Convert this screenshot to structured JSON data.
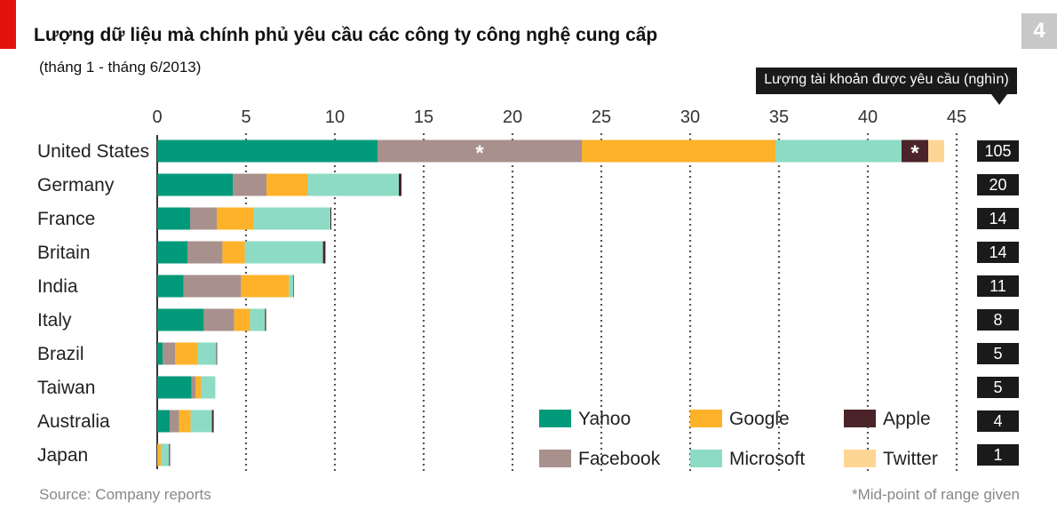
{
  "title": "Lượng dữ liệu mà chính phủ yêu cầu các công ty công nghệ cung cấp",
  "subtitle": "(tháng 1 - tháng 6/2013)",
  "page_number": "4",
  "source": "Source: Company reports",
  "footnote": "*Mid-point of range given",
  "chart_data": {
    "type": "bar",
    "orientation": "horizontal-stacked",
    "xlim": [
      0,
      45
    ],
    "ticks": [
      "0",
      "5",
      "10",
      "15",
      "20",
      "25",
      "30",
      "35",
      "40",
      "45"
    ],
    "grid": "vertical dotted",
    "legend_placement": "bottom-right",
    "categories": [
      "United States",
      "Germany",
      "France",
      "Britain",
      "India",
      "Italy",
      "Brazil",
      "Taiwan",
      "Australia",
      "Japan"
    ],
    "series": [
      {
        "name": "Yahoo",
        "color": "#009a7a",
        "values": [
          12.4,
          4.25,
          1.85,
          1.7,
          1.48,
          2.62,
          0.3,
          1.93,
          0.7,
          0
        ]
      },
      {
        "name": "Facebook",
        "color": "#a8908c",
        "values": [
          11.5,
          1.9,
          1.5,
          1.97,
          3.24,
          1.71,
          0.7,
          0.22,
          0.53,
          0
        ]
      },
      {
        "name": "Google",
        "color": "#fdb22a",
        "values": [
          10.9,
          2.3,
          2.05,
          1.26,
          2.7,
          0.89,
          1.25,
          0.3,
          0.65,
          0.2
        ]
      },
      {
        "name": "Microsoft",
        "color": "#8ddbc4",
        "values": [
          7.1,
          5.15,
          4.35,
          4.4,
          0.25,
          0.85,
          1.08,
          0.82,
          1.2,
          0.47
        ]
      },
      {
        "name": "Apple",
        "color": "#4a2428",
        "values": [
          1.5,
          0.15,
          0.05,
          0.14,
          0.03,
          0.06,
          0.04,
          0,
          0.1,
          0.05
        ]
      },
      {
        "name": "Twitter",
        "color": "#fed694",
        "values": [
          0.9,
          0,
          0,
          0,
          0,
          0,
          0,
          0,
          0,
          0
        ]
      }
    ],
    "annotations": [
      {
        "category": "United States",
        "series": "Facebook",
        "text": "*"
      },
      {
        "category": "United States",
        "series": "Apple",
        "text": "*"
      }
    ],
    "right_column_title": "Lượng tài khoản được yêu cầu (nghìn)",
    "right_column_values": [
      "105",
      "20",
      "14",
      "14",
      "11",
      "8",
      "5",
      "5",
      "4",
      "1"
    ]
  }
}
